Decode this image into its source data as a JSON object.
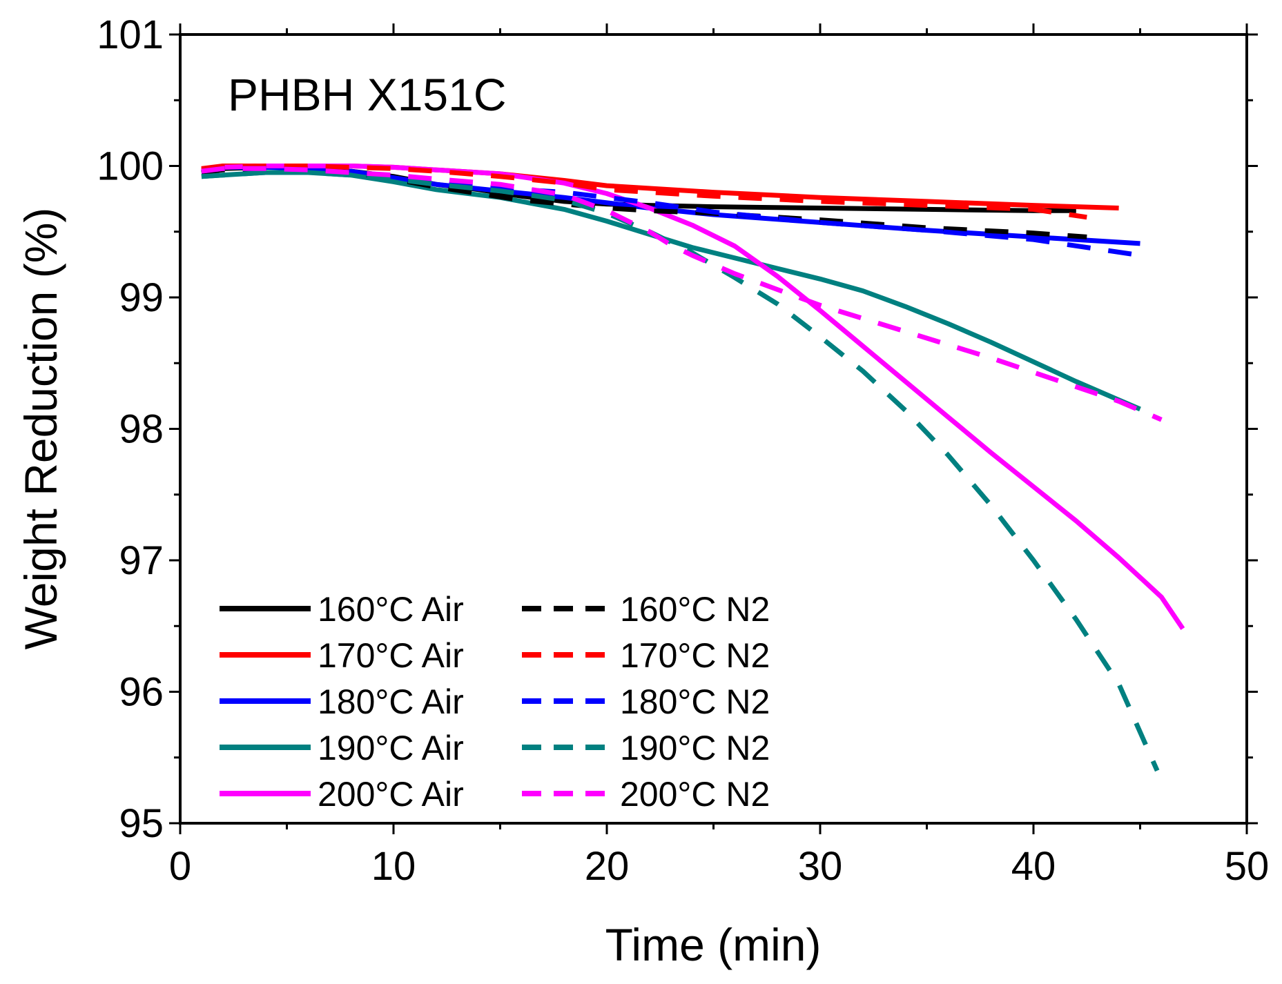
{
  "chart_data": {
    "type": "line",
    "title": "",
    "annotation": "PHBH X151C",
    "xlabel": "Time (min)",
    "ylabel": "Weight Reduction (%)",
    "xlim": [
      0,
      50
    ],
    "ylim": [
      95,
      101
    ],
    "xticks": [
      0,
      10,
      20,
      30,
      40,
      50
    ],
    "yticks": [
      95,
      96,
      97,
      98,
      99,
      100,
      101
    ],
    "xtick_labels": [
      "0",
      "10",
      "20",
      "30",
      "40",
      "50"
    ],
    "ytick_labels": [
      "95",
      "96",
      "97",
      "98",
      "99",
      "100",
      "101"
    ],
    "grid": false,
    "legend_position": "bottom-left",
    "series": [
      {
        "name": "160°C Air",
        "color": "#000000",
        "dash": "solid",
        "x": [
          1,
          2,
          4,
          6,
          8,
          10,
          12,
          14,
          16,
          18,
          20,
          22,
          25,
          30,
          35,
          40,
          42
        ],
        "y": [
          99.95,
          99.98,
          99.99,
          99.99,
          99.96,
          99.92,
          99.86,
          99.82,
          99.77,
          99.73,
          99.71,
          99.7,
          99.69,
          99.68,
          99.67,
          99.66,
          99.66
        ]
      },
      {
        "name": "170°C Air",
        "color": "#ff0000",
        "dash": "solid",
        "x": [
          1,
          2,
          4,
          6,
          8,
          10,
          12,
          15,
          18,
          20,
          25,
          30,
          35,
          40,
          44
        ],
        "y": [
          99.98,
          100.0,
          100.0,
          100.0,
          100.0,
          99.99,
          99.97,
          99.94,
          99.89,
          99.85,
          99.8,
          99.76,
          99.73,
          99.7,
          99.68
        ]
      },
      {
        "name": "180°C Air",
        "color": "#0000ff",
        "dash": "solid",
        "x": [
          1,
          2,
          4,
          6,
          8,
          10,
          12,
          15,
          18,
          20,
          22,
          25,
          30,
          35,
          40,
          45
        ],
        "y": [
          99.97,
          99.99,
          99.99,
          99.98,
          99.96,
          99.91,
          99.86,
          99.81,
          99.76,
          99.72,
          99.68,
          99.63,
          99.57,
          99.51,
          99.46,
          99.41
        ]
      },
      {
        "name": "190°C Air",
        "color": "#008080",
        "dash": "solid",
        "x": [
          1,
          2,
          4,
          6,
          8,
          10,
          12,
          15,
          18,
          20,
          22,
          24,
          26,
          28,
          30,
          32,
          34,
          36,
          38,
          40,
          42,
          44,
          45
        ],
        "y": [
          99.92,
          99.93,
          99.95,
          99.95,
          99.93,
          99.88,
          99.82,
          99.76,
          99.67,
          99.58,
          99.48,
          99.38,
          99.3,
          99.22,
          99.14,
          99.05,
          98.93,
          98.8,
          98.66,
          98.51,
          98.36,
          98.22,
          98.15
        ]
      },
      {
        "name": "200°C Air",
        "color": "#ff00ff",
        "dash": "solid",
        "x": [
          1,
          2,
          4,
          6,
          8,
          10,
          12,
          15,
          18,
          20,
          22,
          24,
          26,
          28,
          30,
          32,
          34,
          36,
          38,
          40,
          42,
          44,
          46,
          47
        ],
        "y": [
          99.97,
          99.99,
          100.0,
          100.0,
          100.0,
          99.99,
          99.97,
          99.94,
          99.87,
          99.79,
          99.68,
          99.55,
          99.39,
          99.16,
          98.9,
          98.63,
          98.36,
          98.09,
          97.82,
          97.56,
          97.3,
          97.02,
          96.72,
          96.48
        ]
      },
      {
        "name": "160°C N2",
        "color": "#000000",
        "dash": "dashed",
        "x": [
          1,
          2,
          4,
          6,
          8,
          10,
          12,
          14,
          16,
          18,
          20,
          22,
          25,
          30,
          35,
          40,
          42.5
        ],
        "y": [
          99.95,
          99.97,
          99.98,
          99.98,
          99.95,
          99.9,
          99.84,
          99.79,
          99.74,
          99.71,
          99.68,
          99.66,
          99.64,
          99.59,
          99.53,
          99.49,
          99.46
        ]
      },
      {
        "name": "170°C N2",
        "color": "#ff0000",
        "dash": "dashed",
        "x": [
          1,
          2,
          4,
          6,
          8,
          10,
          12,
          15,
          18,
          20,
          25,
          30,
          35,
          40,
          42.5
        ],
        "y": [
          99.97,
          99.99,
          100.0,
          100.0,
          99.99,
          99.98,
          99.96,
          99.92,
          99.87,
          99.82,
          99.77,
          99.73,
          99.7,
          99.67,
          99.61
        ]
      },
      {
        "name": "180°C N2",
        "color": "#0000ff",
        "dash": "dashed",
        "x": [
          1,
          2,
          4,
          6,
          8,
          10,
          12,
          15,
          18,
          20,
          22,
          25,
          30,
          35,
          40,
          45
        ],
        "y": [
          99.96,
          99.98,
          99.98,
          99.97,
          99.95,
          99.91,
          99.87,
          99.83,
          99.8,
          99.76,
          99.72,
          99.65,
          99.57,
          99.51,
          99.44,
          99.32
        ]
      },
      {
        "name": "190°C N2",
        "color": "#008080",
        "dash": "dashed",
        "x": [
          1,
          2,
          4,
          6,
          8,
          10,
          12,
          15,
          18,
          20,
          22,
          24,
          26,
          28,
          30,
          32,
          34,
          36,
          38,
          40,
          42,
          44,
          45.8
        ],
        "y": [
          99.92,
          99.93,
          99.95,
          99.95,
          99.93,
          99.9,
          99.86,
          99.81,
          99.74,
          99.64,
          99.5,
          99.34,
          99.15,
          98.95,
          98.7,
          98.44,
          98.14,
          97.8,
          97.42,
          97.0,
          96.55,
          96.06,
          95.4
        ]
      },
      {
        "name": "200°C N2",
        "color": "#ff00ff",
        "dash": "dashed",
        "x": [
          1,
          2,
          4,
          6,
          8,
          10,
          12,
          15,
          18,
          20,
          21,
          22,
          23,
          24,
          26,
          28,
          30,
          32,
          34,
          36,
          38,
          40,
          42,
          44,
          46
        ],
        "y": [
          99.96,
          99.98,
          99.98,
          99.97,
          99.95,
          99.93,
          99.9,
          99.86,
          99.78,
          99.66,
          99.58,
          99.5,
          99.4,
          99.32,
          99.18,
          99.06,
          98.94,
          98.84,
          98.74,
          98.64,
          98.54,
          98.43,
          98.32,
          98.21,
          98.07
        ]
      }
    ]
  }
}
